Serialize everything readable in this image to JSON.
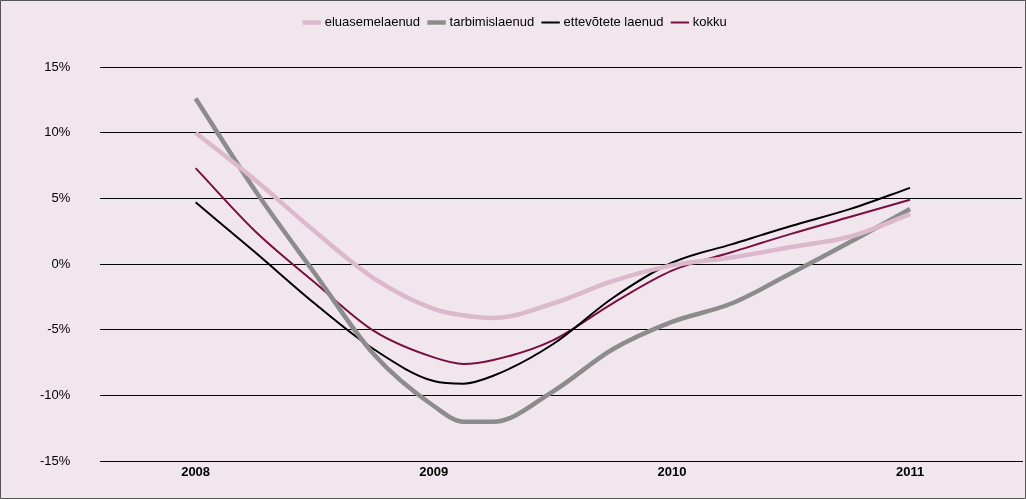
{
  "chart_data": {
    "type": "line",
    "x": [
      2008,
      2008.25,
      2008.5,
      2008.75,
      2009,
      2009.125,
      2009.25,
      2009.5,
      2009.75,
      2010,
      2010.25,
      2010.5,
      2010.75,
      2011
    ],
    "series": [
      {
        "name": "eluasemelaenud",
        "color": "#dbb8cb",
        "values": [
          10,
          6.4,
          2.5,
          -1.1,
          -3.4,
          -3.9,
          -4.1,
          -3,
          -1.3,
          -0.1,
          0.5,
          1.3,
          2.1,
          3.8
        ]
      },
      {
        "name": "tarbimislaenud",
        "color": "#8c8c8c",
        "values": [
          12.6,
          5.6,
          -0.7,
          -6.9,
          -10.8,
          -12,
          -12,
          -9.7,
          -6.5,
          -4.4,
          -3,
          -0.7,
          1.7,
          4.2
        ]
      },
      {
        "name": "ettevõtete laenud",
        "color": "#000000",
        "values": [
          4.7,
          0.9,
          -3,
          -6.5,
          -8.9,
          -9.1,
          -8.5,
          -6.1,
          -2.6,
          0.1,
          1.5,
          2.9,
          4.2,
          5.8
        ]
      },
      {
        "name": "kokku",
        "color": "#7a1040",
        "values": [
          7.3,
          2.5,
          -1.4,
          -5.1,
          -7.1,
          -7.6,
          -7.3,
          -5.8,
          -3,
          -0.5,
          0.9,
          2.3,
          3.6,
          4.9
        ]
      }
    ],
    "xlim": [
      2007.6,
      2011.47
    ],
    "xticks": [
      2008,
      2009,
      2010,
      2011
    ],
    "ylim": [
      -15,
      15
    ],
    "yticks": [
      {
        "value": -15,
        "label": "-15%"
      },
      {
        "value": -10,
        "label": "-10%"
      },
      {
        "value": -5,
        "label": "-5%"
      },
      {
        "value": 0,
        "label": "0%"
      },
      {
        "value": 5,
        "label": "5%"
      },
      {
        "value": 10,
        "label": "10%"
      },
      {
        "value": 15,
        "label": "15%"
      }
    ],
    "grid": "y",
    "legend": "top",
    "marker": "none",
    "line_style": "solid"
  }
}
